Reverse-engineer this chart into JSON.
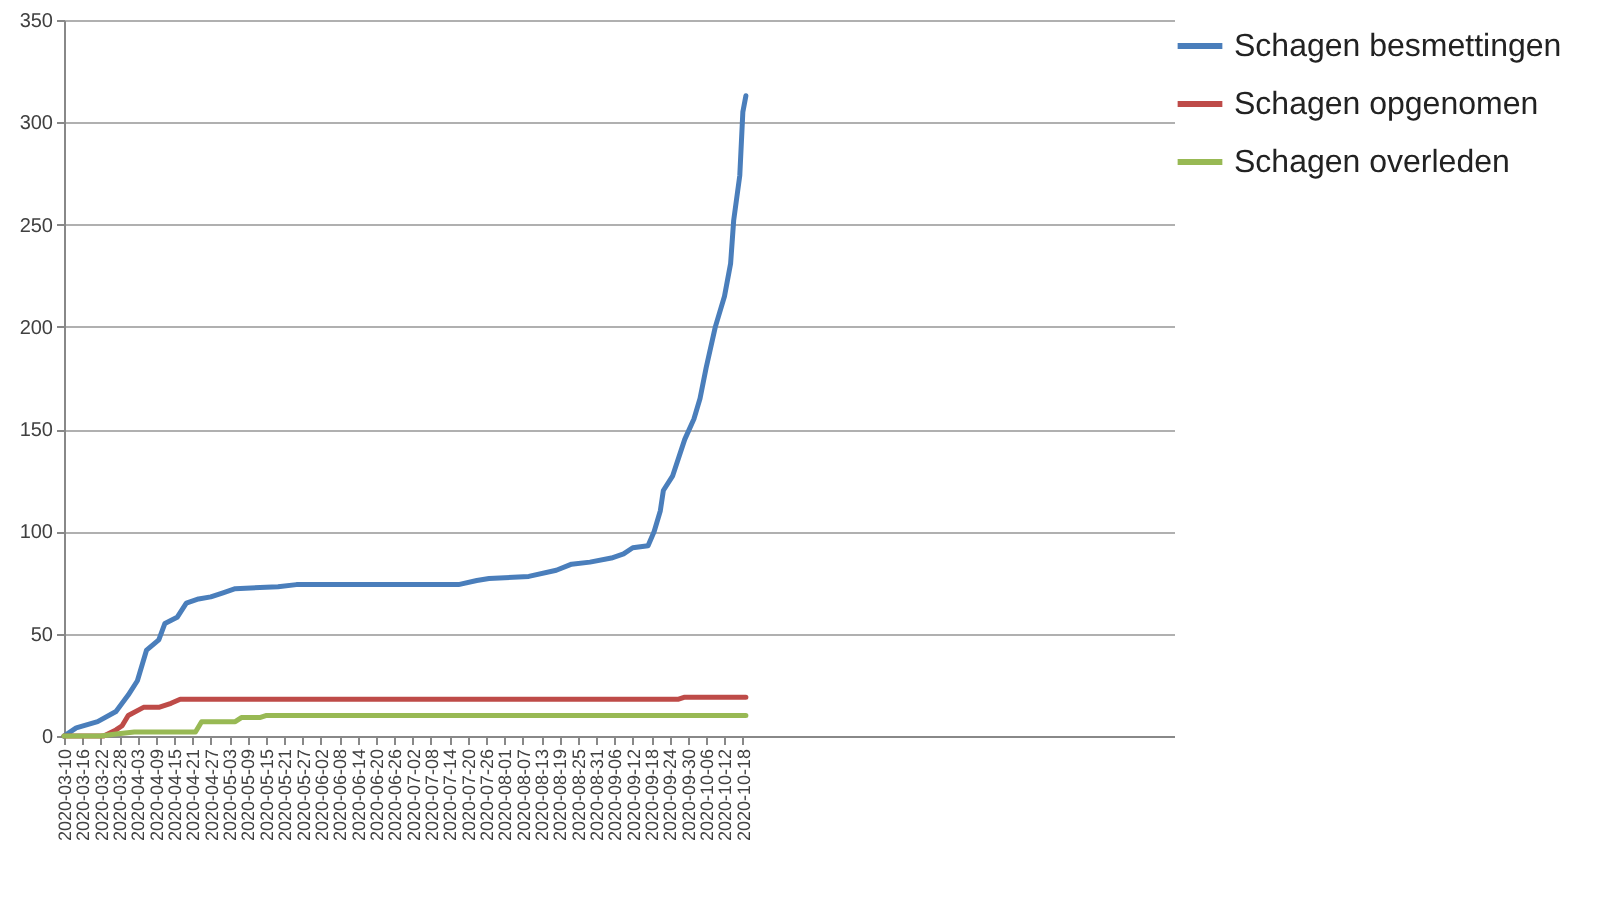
{
  "chart_data": {
    "type": "line",
    "xlim": [
      "2020-03-10",
      "2021-03-08"
    ],
    "xticks": [
      "2020-03-10",
      "2020-03-16",
      "2020-03-22",
      "2020-03-28",
      "2020-04-03",
      "2020-04-09",
      "2020-04-15",
      "2020-04-21",
      "2020-04-27",
      "2020-05-03",
      "2020-05-09",
      "2020-05-15",
      "2020-05-21",
      "2020-05-27",
      "2020-06-02",
      "2020-06-08",
      "2020-06-14",
      "2020-06-20",
      "2020-06-26",
      "2020-07-02",
      "2020-07-08",
      "2020-07-14",
      "2020-07-20",
      "2020-07-26",
      "2020-08-01",
      "2020-08-07",
      "2020-08-13",
      "2020-08-19",
      "2020-08-25",
      "2020-08-31",
      "2020-09-06",
      "2020-09-12",
      "2020-09-18",
      "2020-09-24",
      "2020-09-30",
      "2020-10-06",
      "2020-10-12",
      "2020-10-18"
    ],
    "ylim": [
      0,
      350
    ],
    "yticks": [
      0,
      50,
      100,
      150,
      200,
      250,
      300,
      350
    ],
    "grid": "y",
    "legend": "right",
    "marker": "none",
    "line_style": "solid",
    "series": [
      {
        "name": "Schagen besmettingen",
        "color": "#4a7ebb",
        "x": [
          "2020-03-10",
          "2020-03-14",
          "2020-03-21",
          "2020-03-27",
          "2020-03-31",
          "2020-04-03",
          "2020-04-06",
          "2020-04-10",
          "2020-04-12",
          "2020-04-16",
          "2020-04-19",
          "2020-04-23",
          "2020-04-27",
          "2020-05-01",
          "2020-05-05",
          "2020-05-19",
          "2020-05-25",
          "2020-07-17",
          "2020-07-23",
          "2020-07-27",
          "2020-08-09",
          "2020-08-18",
          "2020-08-23",
          "2020-08-29",
          "2020-09-05",
          "2020-09-09",
          "2020-09-12",
          "2020-09-17",
          "2020-09-19",
          "2020-09-21",
          "2020-09-22",
          "2020-09-25",
          "2020-09-29",
          "2020-10-02",
          "2020-10-04",
          "2020-10-06",
          "2020-10-09",
          "2020-10-12",
          "2020-10-14",
          "2020-10-15",
          "2020-10-17",
          "2020-10-18",
          "2020-10-19"
        ],
        "values": [
          0,
          4,
          7,
          12,
          20,
          27,
          42,
          47,
          55,
          58,
          65,
          67,
          68,
          70,
          72,
          73,
          74,
          74,
          76,
          77,
          78,
          81,
          84,
          85,
          87,
          89,
          92,
          93,
          100,
          110,
          120,
          127,
          145,
          155,
          165,
          180,
          200,
          215,
          231,
          252,
          274,
          305,
          313
        ]
      },
      {
        "name": "Schagen opgenomen",
        "color": "#be4b48",
        "x": [
          "2020-03-10",
          "2020-03-23",
          "2020-03-27",
          "2020-03-29",
          "2020-03-31",
          "2020-04-05",
          "2020-04-10",
          "2020-04-14",
          "2020-04-17",
          "2020-09-27",
          "2020-09-29",
          "2020-10-19"
        ],
        "values": [
          0,
          0,
          3,
          5,
          10,
          14,
          14,
          16,
          18,
          18,
          19,
          19
        ]
      },
      {
        "name": "Schagen overleden",
        "color": "#98b954",
        "x": [
          "2020-03-10",
          "2020-03-22",
          "2020-03-27",
          "2020-04-02",
          "2020-04-22",
          "2020-04-24",
          "2020-05-05",
          "2020-05-07",
          "2020-05-13",
          "2020-05-15",
          "2020-10-19"
        ],
        "values": [
          0,
          0,
          1,
          2,
          2,
          7,
          7,
          9,
          9,
          10,
          10
        ]
      }
    ]
  }
}
